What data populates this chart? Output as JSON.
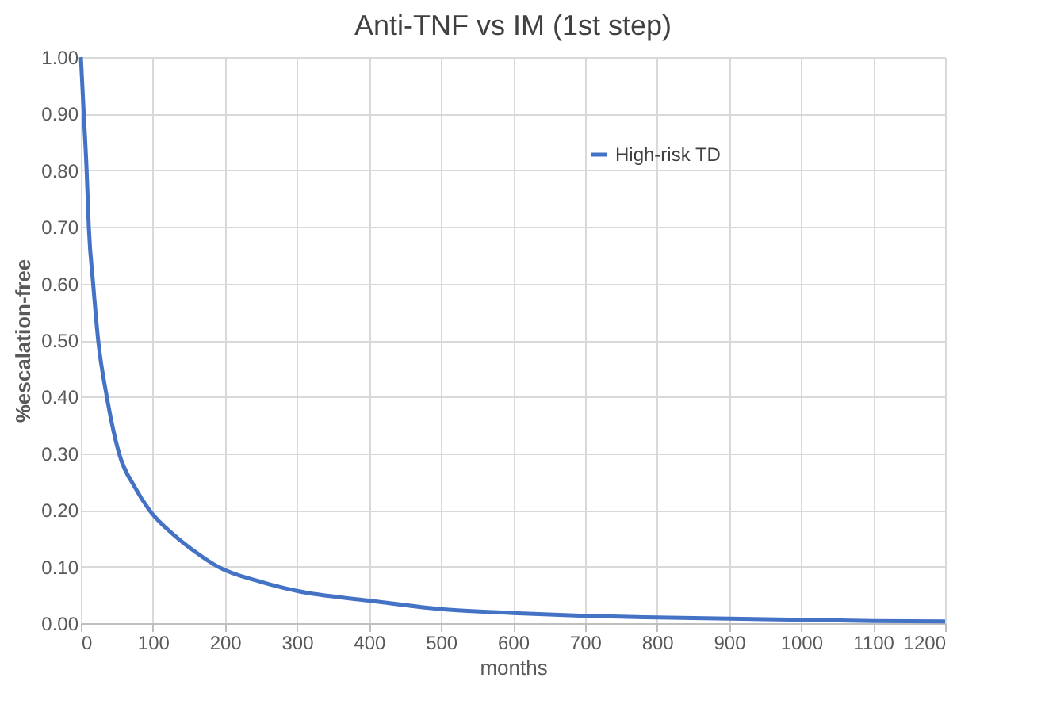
{
  "chart_data": {
    "type": "line",
    "title": "Anti-TNF vs IM (1st step)",
    "xlabel": "months",
    "ylabel": "%escalation-free",
    "x": [
      0,
      4,
      8,
      11,
      17,
      24,
      36,
      53,
      75,
      95,
      130,
      160,
      190,
      250,
      300,
      400,
      500,
      600,
      700,
      800,
      900,
      1000,
      1100,
      1200
    ],
    "series": [
      {
        "name": "High-risk TD",
        "color": "#4472c4",
        "values": [
          1.0,
          0.9,
          0.8,
          0.7,
          0.6,
          0.5,
          0.4,
          0.3,
          0.24,
          0.2,
          0.155,
          0.125,
          0.1,
          0.073,
          0.057,
          0.04,
          0.025,
          0.018,
          0.013,
          0.01,
          0.008,
          0.006,
          0.004,
          0.003
        ]
      }
    ],
    "xlim": [
      0,
      1200
    ],
    "xticks": [
      0,
      100,
      200,
      300,
      400,
      500,
      600,
      700,
      800,
      900,
      1000,
      1100,
      1200
    ],
    "ylim": [
      0,
      1
    ],
    "yticks": [
      {
        "value": 0,
        "label": "0.00"
      },
      {
        "value": 0.1,
        "label": "0.10"
      },
      {
        "value": 0.2,
        "label": "0.20"
      },
      {
        "value": 0.3,
        "label": "0.30"
      },
      {
        "value": 0.4,
        "label": "0.40"
      },
      {
        "value": 0.5,
        "label": "0.50"
      },
      {
        "value": 0.6,
        "label": "0.60"
      },
      {
        "value": 0.7,
        "label": "0.70"
      },
      {
        "value": 0.8,
        "label": "0.80"
      },
      {
        "value": 0.9,
        "label": "0.90"
      },
      {
        "value": 1,
        "label": "1.00"
      }
    ],
    "grid": true,
    "legend": "top right",
    "marker": "none",
    "line_style": "solid"
  }
}
